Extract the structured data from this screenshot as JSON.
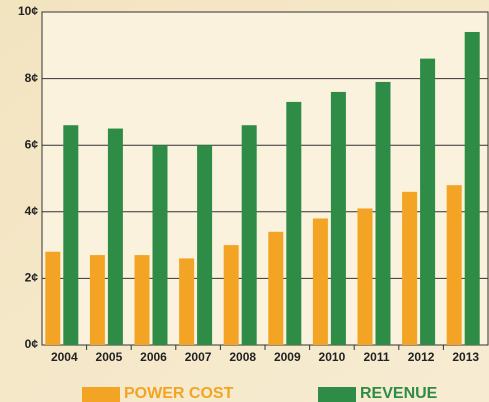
{
  "chart_data": {
    "type": "bar",
    "categories": [
      "2004",
      "2005",
      "2006",
      "2007",
      "2008",
      "2009",
      "2010",
      "2011",
      "2012",
      "2013"
    ],
    "series": [
      {
        "name": "POWER COST",
        "color": "#f4a424",
        "values": [
          2.8,
          2.7,
          2.7,
          2.6,
          3.0,
          3.4,
          3.8,
          4.1,
          4.6,
          4.8
        ]
      },
      {
        "name": "REVENUE",
        "color": "#2f8c46",
        "values": [
          6.6,
          6.5,
          6.0,
          6.0,
          6.6,
          7.3,
          7.6,
          7.9,
          8.6,
          9.4
        ]
      }
    ],
    "ylim": [
      0,
      10
    ],
    "yticks": [
      {
        "value": 0,
        "label": "0¢"
      },
      {
        "value": 2,
        "label": "2¢"
      },
      {
        "value": 4,
        "label": "4¢"
      },
      {
        "value": 6,
        "label": "6¢"
      },
      {
        "value": 8,
        "label": "8¢"
      },
      {
        "value": 10,
        "label": "10¢"
      }
    ],
    "grid": true
  }
}
